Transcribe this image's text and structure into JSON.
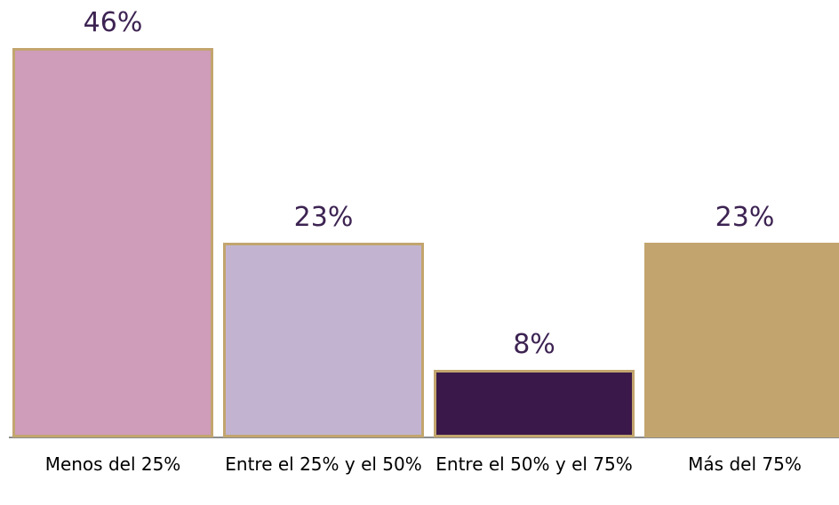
{
  "chart_data": {
    "type": "bar",
    "categories": [
      "Menos del 25%",
      "Entre el 25% y el 50%",
      "Entre el 50% y el 75%",
      "Más del 75%"
    ],
    "values": [
      46,
      23,
      8,
      23
    ],
    "value_labels": [
      "46%",
      "23%",
      "8%",
      "23%"
    ],
    "colors": [
      "#cf9cb9",
      "#c2b4d0",
      "#3a1849",
      "#c2a56e"
    ],
    "grid": false
  }
}
